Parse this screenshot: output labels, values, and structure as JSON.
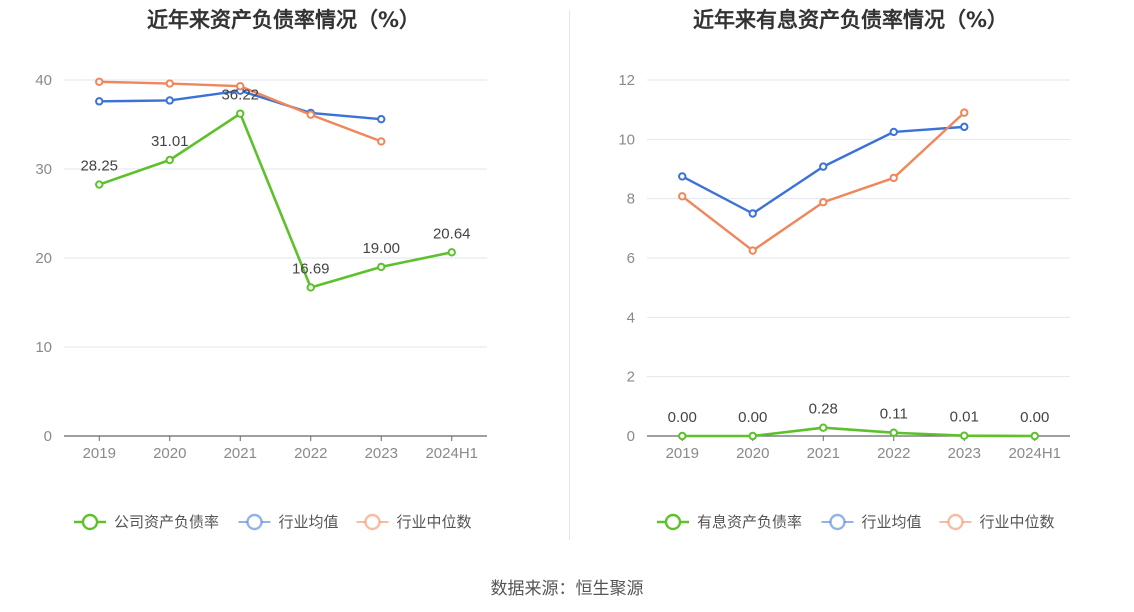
{
  "source_text": "数据来源：恒生聚源",
  "chart_data": [
    {
      "type": "line",
      "title": "近年来资产负债率情况（%）",
      "categories": [
        "2019",
        "2020",
        "2021",
        "2022",
        "2023",
        "2024H1"
      ],
      "ylim": [
        0,
        40
      ],
      "yticks": [
        0,
        10,
        20,
        30,
        40
      ],
      "grid": true,
      "legend_position": "bottom",
      "series": [
        {
          "name": "公司资产负债率",
          "color": "#5dc12c",
          "values": [
            28.25,
            31.01,
            36.22,
            16.69,
            19.0,
            20.64
          ],
          "labels": [
            "28.25",
            "31.01",
            "36.22",
            "16.69",
            "19.00",
            "20.64"
          ]
        },
        {
          "name": "行业均值",
          "color": "#3b72d8",
          "values": [
            37.6,
            37.7,
            38.8,
            36.3,
            35.6,
            null
          ]
        },
        {
          "name": "行业中位数",
          "color": "#f0865a",
          "values": [
            39.8,
            39.6,
            39.3,
            36.1,
            33.1,
            null
          ]
        }
      ]
    },
    {
      "type": "line",
      "title": "近年来有息资产负债率情况（%）",
      "categories": [
        "2019",
        "2020",
        "2021",
        "2022",
        "2023",
        "2024H1"
      ],
      "ylim": [
        0,
        12
      ],
      "yticks": [
        0,
        2,
        4,
        6,
        8,
        10,
        12
      ],
      "grid": true,
      "legend_position": "bottom",
      "series": [
        {
          "name": "有息资产负债率",
          "color": "#5dc12c",
          "values": [
            0.0,
            0.0,
            0.28,
            0.11,
            0.01,
            0.0
          ],
          "labels": [
            "0.00",
            "0.00",
            "0.28",
            "0.11",
            "0.01",
            "0.00"
          ]
        },
        {
          "name": "行业均值",
          "color": "#3b72d8",
          "values": [
            8.75,
            7.5,
            9.08,
            10.25,
            10.42,
            null
          ]
        },
        {
          "name": "行业中位数",
          "color": "#f0865a",
          "values": [
            8.08,
            6.25,
            7.88,
            8.7,
            10.9,
            null
          ]
        }
      ]
    }
  ]
}
